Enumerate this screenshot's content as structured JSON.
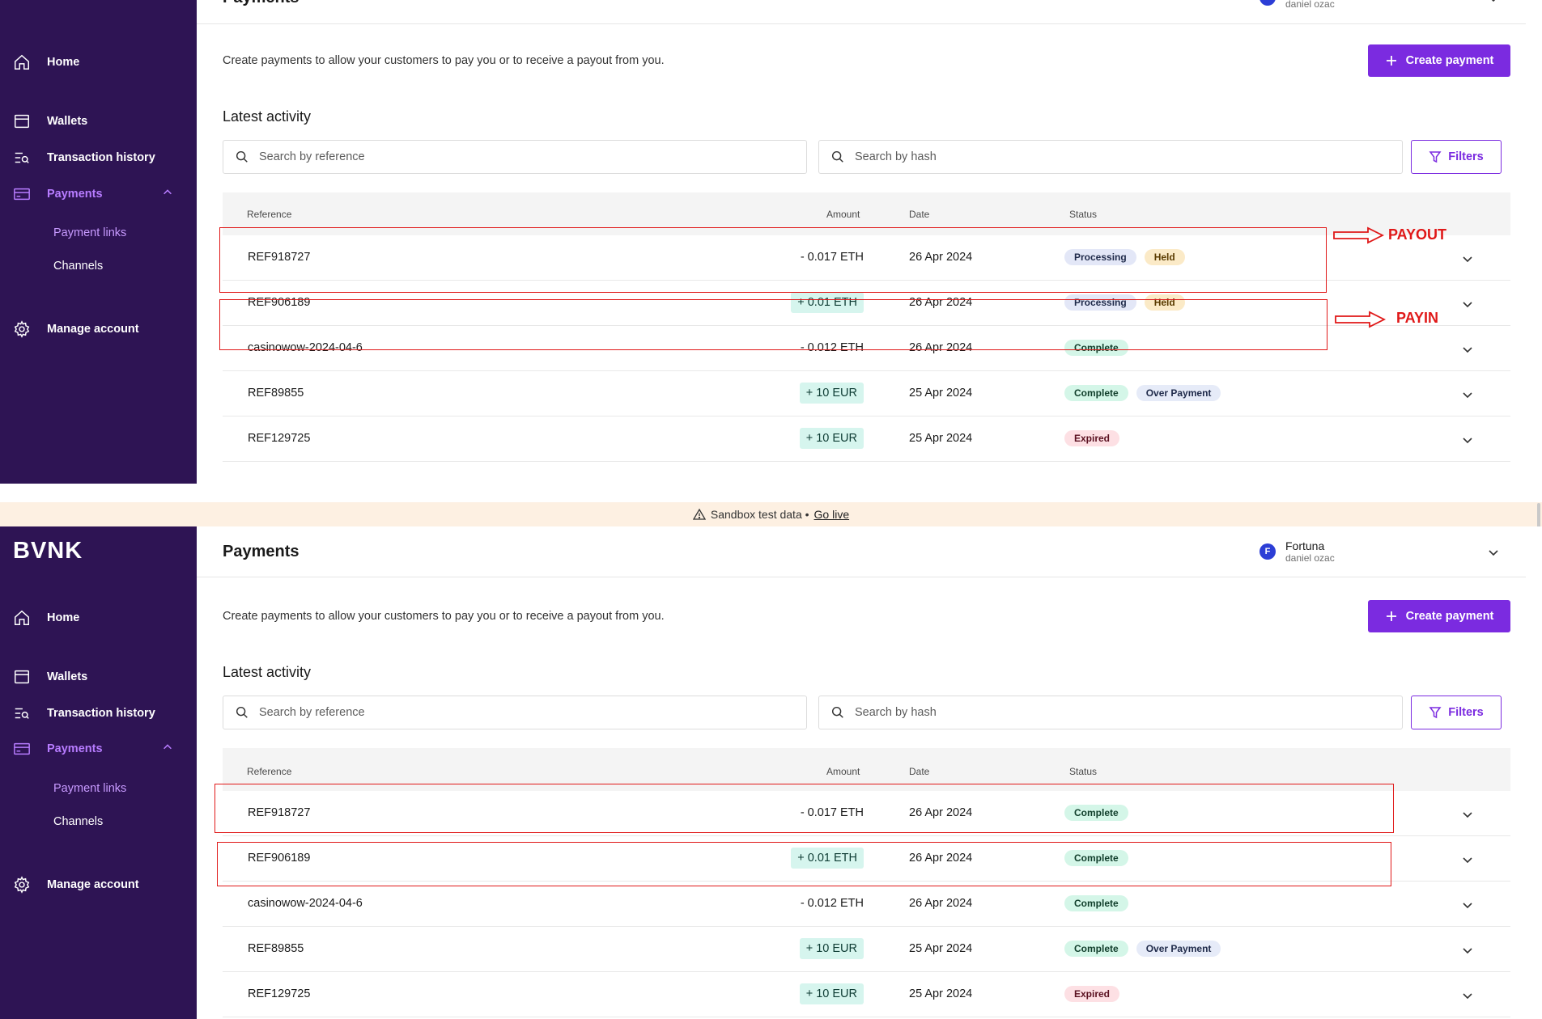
{
  "brand": "BVNK",
  "sidebar": {
    "items": [
      {
        "label": "Home",
        "icon": "home-icon"
      },
      {
        "label": "Wallets",
        "icon": "wallet-icon"
      },
      {
        "label": "Transaction history",
        "icon": "transaction-history-icon"
      },
      {
        "label": "Payments",
        "icon": "payments-icon",
        "active": true,
        "expanded": true
      },
      {
        "label": "Manage account",
        "icon": "gear-icon"
      }
    ],
    "subitems": [
      {
        "label": "Payment links",
        "active": true
      },
      {
        "label": "Channels"
      }
    ]
  },
  "header": {
    "title": "Payments",
    "user_initial": "F",
    "user_name": "Fortuna",
    "user_sub": "daniel ozac"
  },
  "description": "Create payments to allow your customers to pay you or to receive a payout from you.",
  "create_button": "Create payment",
  "section_title": "Latest activity",
  "search_reference_placeholder": "Search by reference",
  "search_hash_placeholder": "Search by hash",
  "filters_button": "Filters",
  "table_headers": {
    "reference": "Reference",
    "amount": "Amount",
    "date": "Date",
    "status": "Status"
  },
  "banner": {
    "text": "Sandbox test data •",
    "link": "Go live"
  },
  "top_rows": [
    {
      "reference": "REF918727",
      "amount": "- 0.017 ETH",
      "direction": "out",
      "date": "26 Apr 2024",
      "statuses": [
        {
          "label": "Processing",
          "kind": "processing"
        },
        {
          "label": "Held",
          "kind": "held"
        }
      ]
    },
    {
      "reference": "REF906189",
      "amount": "+ 0.01 ETH",
      "direction": "in",
      "date": "26 Apr 2024",
      "statuses": [
        {
          "label": "Processing",
          "kind": "processing"
        },
        {
          "label": "Held",
          "kind": "held"
        }
      ]
    },
    {
      "reference": "casinowow-2024-04-6",
      "amount": "- 0.012 ETH",
      "direction": "out",
      "date": "26 Apr 2024",
      "statuses": [
        {
          "label": "Complete",
          "kind": "complete"
        }
      ]
    },
    {
      "reference": "REF89855",
      "amount": "+ 10 EUR",
      "direction": "in",
      "date": "25 Apr 2024",
      "statuses": [
        {
          "label": "Complete",
          "kind": "complete"
        },
        {
          "label": "Over Payment",
          "kind": "over"
        }
      ]
    },
    {
      "reference": "REF129725",
      "amount": "+ 10 EUR",
      "direction": "in",
      "date": "25 Apr 2024",
      "statuses": [
        {
          "label": "Expired",
          "kind": "expired"
        }
      ]
    }
  ],
  "bottom_rows": [
    {
      "reference": "REF918727",
      "amount": "- 0.017 ETH",
      "direction": "out",
      "date": "26 Apr 2024",
      "statuses": [
        {
          "label": "Complete",
          "kind": "complete"
        }
      ]
    },
    {
      "reference": "REF906189",
      "amount": "+ 0.01 ETH",
      "direction": "in",
      "date": "26 Apr 2024",
      "statuses": [
        {
          "label": "Complete",
          "kind": "complete"
        }
      ]
    },
    {
      "reference": "casinowow-2024-04-6",
      "amount": "- 0.012 ETH",
      "direction": "out",
      "date": "26 Apr 2024",
      "statuses": [
        {
          "label": "Complete",
          "kind": "complete"
        }
      ]
    },
    {
      "reference": "REF89855",
      "amount": "+ 10 EUR",
      "direction": "in",
      "date": "25 Apr 2024",
      "statuses": [
        {
          "label": "Complete",
          "kind": "complete"
        },
        {
          "label": "Over Payment",
          "kind": "over"
        }
      ]
    },
    {
      "reference": "REF129725",
      "amount": "+ 10 EUR",
      "direction": "in",
      "date": "25 Apr 2024",
      "statuses": [
        {
          "label": "Expired",
          "kind": "expired"
        }
      ]
    }
  ],
  "annotations": {
    "payout": "PAYOUT",
    "payin": "PAYIN"
  },
  "colors": {
    "sidebar": "#2e1454",
    "accent": "#7b2be0",
    "annotation": "#e01818",
    "banner": "#fdf0e2"
  }
}
